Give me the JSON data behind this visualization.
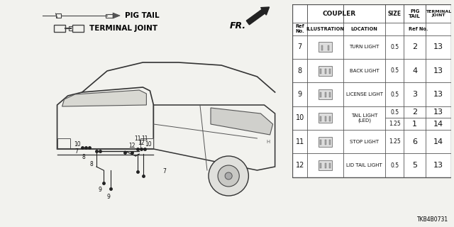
{
  "bg_color": "#f2f2ee",
  "title_code": "TKB4B0731",
  "table_rows": [
    {
      "ref": "7",
      "location": "TURN LIGHT",
      "size": "0.5",
      "pig": "2",
      "term": "13",
      "merged": false
    },
    {
      "ref": "8",
      "location": "BACK LIGHT",
      "size": "0.5",
      "pig": "4",
      "term": "13",
      "merged": false
    },
    {
      "ref": "9",
      "location": "LICENSE LIGHT",
      "size": "0.5",
      "pig": "3",
      "term": "13",
      "merged": false
    },
    {
      "ref": "10",
      "location": "TAIL LIGHT\n(LED)",
      "size_a": "0.5",
      "pig_a": "2",
      "term_a": "13",
      "size_b": "1.25",
      "pig_b": "1",
      "term_b": "14",
      "merged": true
    },
    {
      "ref": "11",
      "location": "STOP LIGHT",
      "size": "1.25",
      "pig": "6",
      "term": "14",
      "merged": false
    },
    {
      "ref": "12",
      "location": "LID TAIL LIGHT",
      "size": "0.5",
      "pig": "5",
      "term": "13",
      "merged": false
    }
  ],
  "legend": {
    "pig_tail_label": "PIG TAIL",
    "terminal_joint_label": "TERMINAL JOINT"
  },
  "fr_label": "FR."
}
